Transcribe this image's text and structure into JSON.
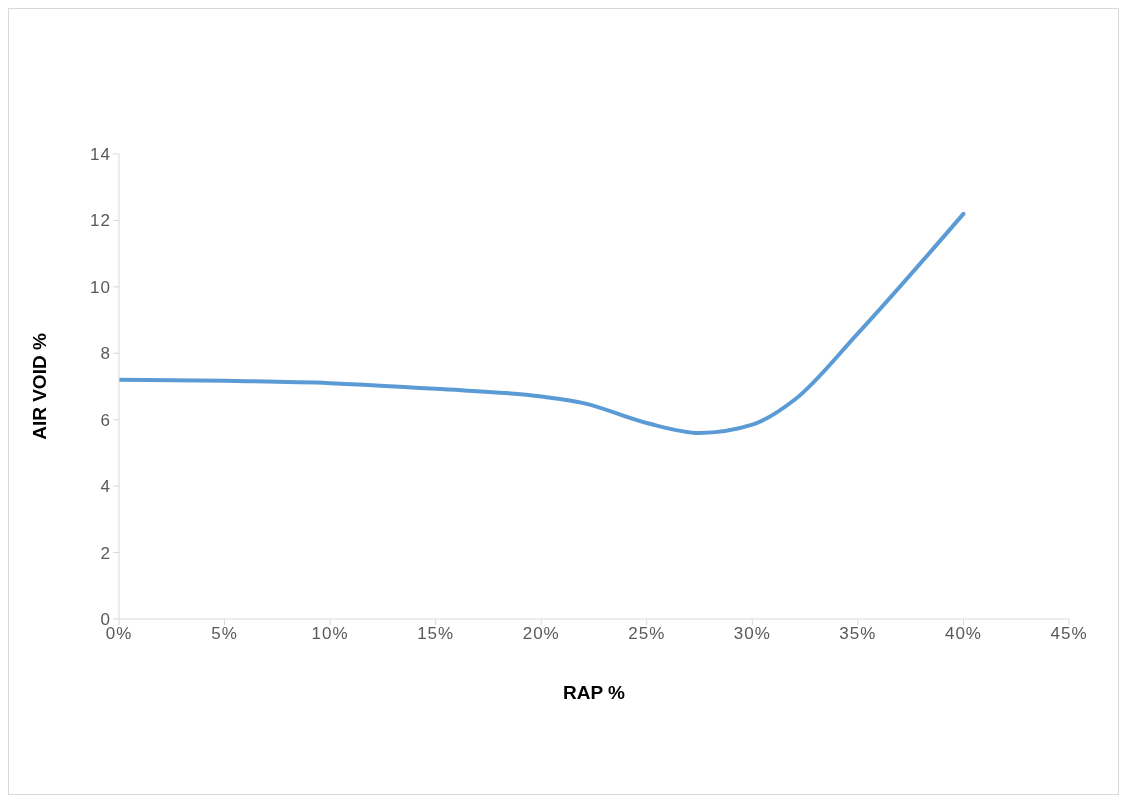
{
  "chart_data": {
    "type": "line",
    "xlabel": "RAP %",
    "ylabel": "AIR VOID %",
    "x": [
      0,
      5,
      10,
      15,
      20,
      22,
      25,
      27.5,
      30,
      32,
      35,
      40
    ],
    "series": [
      {
        "color": "#5b9bd5",
        "values": [
          7.2,
          7.17,
          7.1,
          6.93,
          6.7,
          6.5,
          5.9,
          5.6,
          5.85,
          6.6,
          8.6,
          12.2
        ]
      }
    ],
    "xlim": [
      0,
      45
    ],
    "xticks": [
      {
        "value": 0,
        "label": "0%"
      },
      {
        "value": 5,
        "label": "5%"
      },
      {
        "value": 10,
        "label": "10%"
      },
      {
        "value": 15,
        "label": "15%"
      },
      {
        "value": 20,
        "label": "20%"
      },
      {
        "value": 25,
        "label": "25%"
      },
      {
        "value": 30,
        "label": "30%"
      },
      {
        "value": 35,
        "label": "35%"
      },
      {
        "value": 40,
        "label": "40%"
      },
      {
        "value": 45,
        "label": "45%"
      }
    ],
    "ylim": [
      0,
      14
    ],
    "yticks": [
      0,
      2,
      4,
      6,
      8,
      10,
      12,
      14
    ],
    "grid": false,
    "marker": "none",
    "line_style": "solid"
  }
}
